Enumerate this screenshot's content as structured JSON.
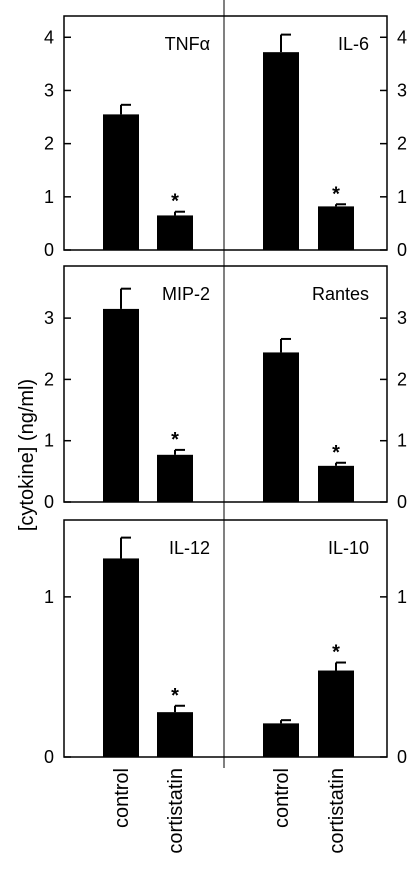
{
  "chart_data": {
    "type": "bar",
    "ylabel": "[cytokine] (ng/ml)",
    "categories": [
      "control",
      "cortistatin"
    ],
    "colors": {
      "bar": "#000000",
      "axis": "#000000",
      "background": "#ffffff"
    },
    "significance_marker": "*",
    "panels": [
      {
        "label": "TNFα",
        "ylim": [
          0,
          4.4
        ],
        "yticks": [
          "0",
          "1",
          "2",
          "3",
          "4"
        ],
        "values": [
          2.55,
          0.65
        ],
        "errors": [
          0.18,
          0.07
        ],
        "significant": [
          false,
          true
        ]
      },
      {
        "label": "IL-6",
        "ylim": [
          0,
          4.4
        ],
        "yticks": [
          "0",
          "1",
          "2",
          "3",
          "4"
        ],
        "values": [
          3.72,
          0.82
        ],
        "errors": [
          0.33,
          0.04
        ],
        "significant": [
          false,
          true
        ]
      },
      {
        "label": "MIP-2",
        "ylim": [
          0,
          3.85
        ],
        "yticks": [
          "0",
          "1",
          "2",
          "3"
        ],
        "values": [
          3.15,
          0.77
        ],
        "errors": [
          0.33,
          0.08
        ],
        "significant": [
          false,
          true
        ]
      },
      {
        "label": "Rantes",
        "ylim": [
          0,
          3.85
        ],
        "yticks": [
          "0",
          "1",
          "2",
          "3"
        ],
        "values": [
          2.44,
          0.59
        ],
        "errors": [
          0.22,
          0.05
        ],
        "significant": [
          false,
          true
        ]
      },
      {
        "label": "IL-12",
        "ylim": [
          0,
          1.48
        ],
        "yticks": [
          "0",
          "1"
        ],
        "values": [
          1.24,
          0.28
        ],
        "errors": [
          0.13,
          0.04
        ],
        "significant": [
          false,
          true
        ]
      },
      {
        "label": "IL-10",
        "ylim": [
          0,
          1.48
        ],
        "yticks": [
          "0",
          "1"
        ],
        "values": [
          0.21,
          0.54
        ],
        "errors": [
          0.02,
          0.05
        ],
        "significant": [
          false,
          true
        ]
      }
    ]
  }
}
